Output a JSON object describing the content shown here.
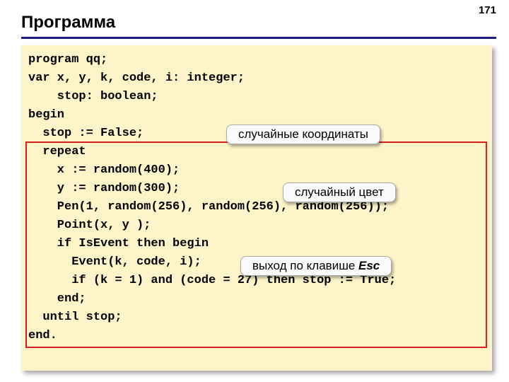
{
  "page_number": "171",
  "title": "Программа",
  "code": {
    "l1": "program qq;",
    "l2": "var x, y, k, code, i: integer;",
    "l3": "    stop: boolean;",
    "l4": "begin",
    "l5": "  stop := False;",
    "l6": "  repeat",
    "l7": "    x := random(400);",
    "l8": "    y := random(300);",
    "l9": "    Pen(1, random(256), random(256), random(256));",
    "l10": "    Point(x, y );",
    "l11": "    if IsEvent then begin",
    "l12": "      Event(k, code, i);",
    "l13": "      if (k = 1) and (code = 27) then stop := True;",
    "l14": "    end;",
    "l15": "  until stop;",
    "l16": "end."
  },
  "callouts": {
    "coords": "случайные координаты",
    "color": "случайный цвет",
    "exit_prefix": "выход по клавише ",
    "exit_key": "Esc"
  },
  "colors": {
    "underline": "#1a1a8a",
    "panel_bg": "#fdf5c9",
    "highlight_border": "#d81e1e",
    "callout_bg": "#fafafa"
  }
}
